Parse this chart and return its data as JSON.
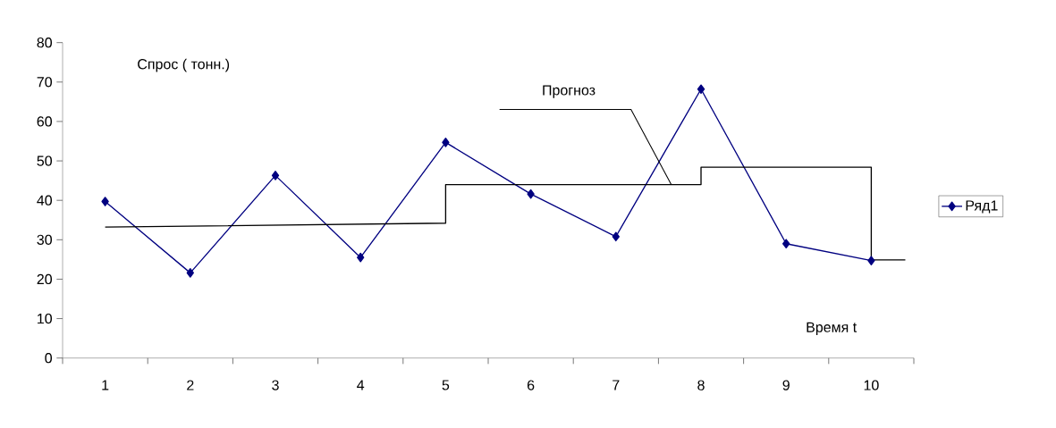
{
  "chart_data": {
    "type": "line",
    "xlabel": "Время  t",
    "ylabel": "Спрос ( тонн.)",
    "x": [
      1,
      2,
      3,
      4,
      5,
      6,
      7,
      8,
      9,
      10
    ],
    "xlim": [
      0.5,
      10.5
    ],
    "xticks": [
      1,
      2,
      3,
      4,
      5,
      6,
      7,
      8,
      9,
      10,
      {
        "value": 0.5,
        "label": null
      },
      {
        "value": 1.5,
        "label": null
      },
      {
        "value": 2.5,
        "label": null
      },
      {
        "value": 3.5,
        "label": null
      },
      {
        "value": 4.5,
        "label": null
      },
      {
        "value": 5.5,
        "label": null
      },
      {
        "value": 6.5,
        "label": null
      },
      {
        "value": 7.5,
        "label": null
      },
      {
        "value": 8.5,
        "label": null
      },
      {
        "value": 9.5,
        "label": null
      },
      {
        "value": 10.5,
        "label": null
      }
    ],
    "ylim": [
      0,
      80
    ],
    "yticks": [
      0,
      10,
      20,
      30,
      40,
      50,
      60,
      70,
      80
    ],
    "grid": false,
    "legend": "right",
    "marker": "diamond",
    "line_style": "solid",
    "series": [
      {
        "name": "Ряд1",
        "color": "#000080",
        "values": [
          39.7,
          21.6,
          46.3,
          25.5,
          54.7,
          41.6,
          30.8,
          68.2,
          29.0,
          24.7
        ]
      },
      {
        "color": "#000000",
        "marker": "none",
        "x": [
          1,
          5,
          5,
          8,
          8,
          10,
          10,
          10.4
        ],
        "values": [
          33.2,
          34.2,
          44,
          44,
          48.4,
          48.4,
          24.9,
          24.9
        ]
      }
    ],
    "annotations": [
      {
        "text": "Прогноз",
        "x": 7.65,
        "y": 44
      }
    ]
  }
}
